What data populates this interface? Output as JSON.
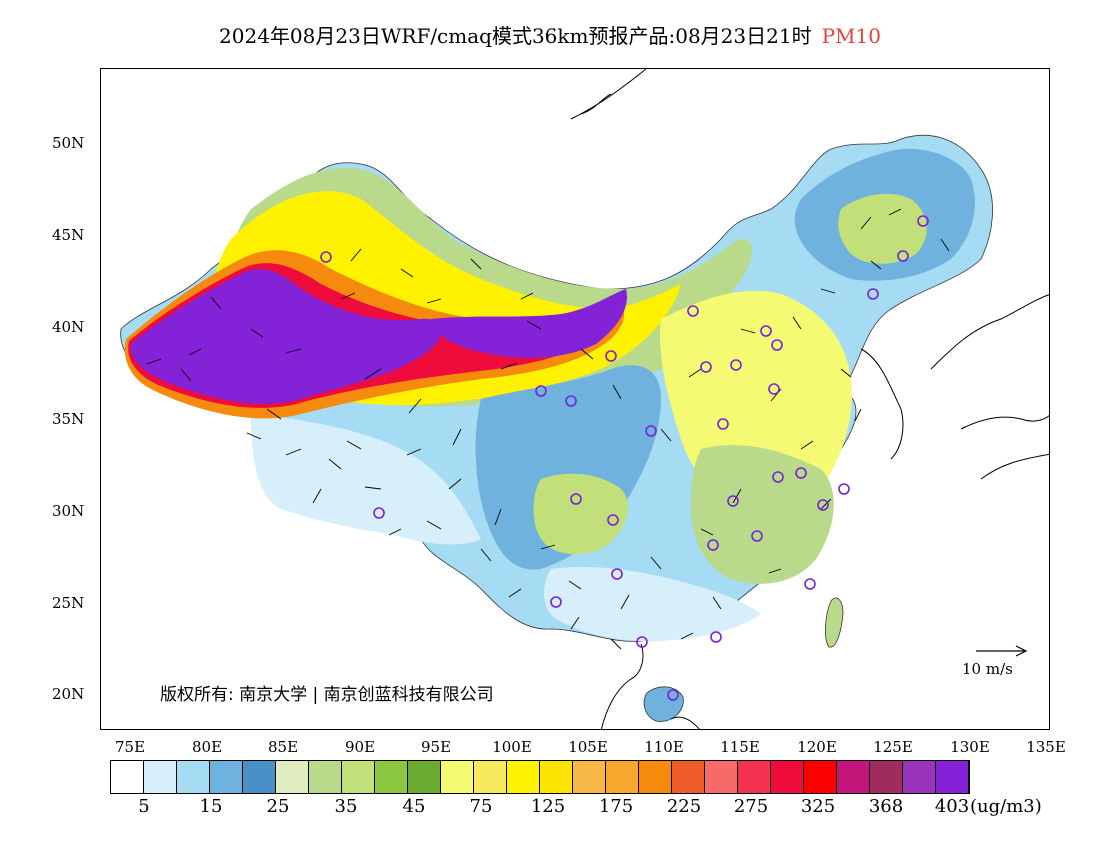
{
  "title": {
    "text": "2024年08月23日WRF/cmaq模式36km预报产品:08月23日21时",
    "pollutant": "PM10"
  },
  "map": {
    "lat_labels": [
      "50N",
      "45N",
      "40N",
      "35N",
      "30N",
      "25N",
      "20N"
    ],
    "lon_labels": [
      "75E",
      "80E",
      "85E",
      "90E",
      "95E",
      "100E",
      "105E",
      "110E",
      "115E",
      "120E",
      "125E",
      "130E",
      "135E"
    ],
    "wind_reference": "10 m/s",
    "copyright": "版权所有: 南京大学 | 南京创蓝科技有限公司"
  },
  "colorbar": {
    "colors": [
      "#ffffff",
      "#d7effb",
      "#a6dbf4",
      "#6fb2de",
      "#4a8fc6",
      "#dfedc0",
      "#b9da8a",
      "#c2e07a",
      "#8cc83f",
      "#6aab32",
      "#f4fb73",
      "#f6e95c",
      "#fff200",
      "#fde300",
      "#f8b846",
      "#f7a72c",
      "#f58a0c",
      "#ee5c2a",
      "#f76a6a",
      "#f3324f",
      "#ee0c3c",
      "#fb0000",
      "#c3167a",
      "#9e2c5c",
      "#9b32bc",
      "#8322d6"
    ],
    "labels": [
      "5",
      "15",
      "25",
      "35",
      "45",
      "75",
      "125",
      "175",
      "225",
      "275",
      "325",
      "368",
      "403"
    ],
    "units": "(ug/m3)"
  }
}
